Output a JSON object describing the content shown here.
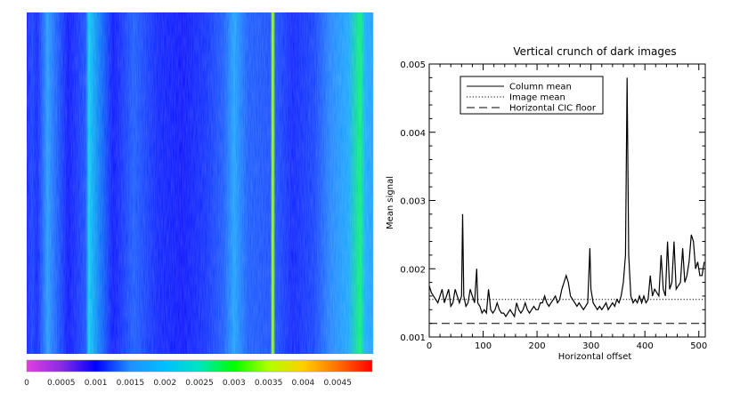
{
  "chart_data": [
    {
      "type": "heatmap",
      "colorbar": {
        "tick_labels": [
          "0",
          "0.0005",
          "0.001",
          "0.0015",
          "0.002",
          "0.0025",
          "0.003",
          "0.0035",
          "0.004",
          "0.0045"
        ],
        "ticks": [
          0,
          0.0005,
          0.001,
          0.0015,
          0.002,
          0.0025,
          0.003,
          0.0035,
          0.004,
          0.0045
        ],
        "range": [
          0,
          0.005
        ],
        "colors": [
          "#e040e0",
          "#8a2be2",
          "#0000ff",
          "#1e90ff",
          "#00bfff",
          "#00e5c0",
          "#00ff00",
          "#b0ff00",
          "#ffd000",
          "#ff7000",
          "#ff0000"
        ]
      },
      "column_profile": [
        {
          "x": 0,
          "y": 0.0011
        },
        {
          "x": 0.015,
          "y": 0.0012
        },
        {
          "x": 0.03,
          "y": 0.0011
        },
        {
          "x": 0.06,
          "y": 0.00155
        },
        {
          "x": 0.12,
          "y": 0.00105
        },
        {
          "x": 0.17,
          "y": 0.00125
        },
        {
          "x": 0.18,
          "y": 0.0021
        },
        {
          "x": 0.25,
          "y": 0.00105
        },
        {
          "x": 0.31,
          "y": 0.0013
        },
        {
          "x": 0.38,
          "y": 0.0011
        },
        {
          "x": 0.45,
          "y": 0.00105
        },
        {
          "x": 0.52,
          "y": 0.00115
        },
        {
          "x": 0.57,
          "y": 0.0013
        },
        {
          "x": 0.6,
          "y": 0.00165
        },
        {
          "x": 0.64,
          "y": 0.0013
        },
        {
          "x": 0.705,
          "y": 0.00125
        },
        {
          "x": 0.712,
          "y": 0.0034
        },
        {
          "x": 0.72,
          "y": 0.00125
        },
        {
          "x": 0.77,
          "y": 0.0011
        },
        {
          "x": 0.83,
          "y": 0.0012
        },
        {
          "x": 0.88,
          "y": 0.00145
        },
        {
          "x": 0.93,
          "y": 0.0017
        },
        {
          "x": 0.965,
          "y": 0.0027
        },
        {
          "x": 0.98,
          "y": 0.0018
        },
        {
          "x": 1.0,
          "y": 0.0016
        }
      ]
    },
    {
      "type": "line",
      "title": "Vertical crunch of dark images",
      "xlabel": "Horizontal offset",
      "ylabel": "Mean signal",
      "xlim": [
        0,
        512
      ],
      "ylim": [
        0.001,
        0.005
      ],
      "x_ticks": [
        0,
        100,
        200,
        300,
        400,
        500
      ],
      "x_tick_labels": [
        "0",
        "100",
        "200",
        "300",
        "400",
        "500"
      ],
      "y_ticks": [
        0.001,
        0.002,
        0.003,
        0.004,
        0.005
      ],
      "y_tick_labels": [
        "0.001",
        "0.002",
        "0.003",
        "0.004",
        "0.005"
      ],
      "legend": {
        "position": "top-left",
        "entries": [
          {
            "label": "Column mean",
            "style": "solid"
          },
          {
            "label": "Image mean",
            "style": "dotted"
          },
          {
            "label": "Horizontal CIC floor",
            "style": "dashed"
          }
        ]
      },
      "series": [
        {
          "name": "Column mean",
          "style": "solid",
          "points": [
            [
              0,
              0.00175
            ],
            [
              4,
              0.00165
            ],
            [
              8,
              0.0016
            ],
            [
              12,
              0.00155
            ],
            [
              16,
              0.0015
            ],
            [
              20,
              0.0016
            ],
            [
              24,
              0.0017
            ],
            [
              28,
              0.0015
            ],
            [
              32,
              0.0016
            ],
            [
              36,
              0.0017
            ],
            [
              40,
              0.00145
            ],
            [
              44,
              0.0015
            ],
            [
              48,
              0.0017
            ],
            [
              52,
              0.0016
            ],
            [
              56,
              0.0015
            ],
            [
              60,
              0.0016
            ],
            [
              62,
              0.0028
            ],
            [
              64,
              0.0016
            ],
            [
              68,
              0.00145
            ],
            [
              72,
              0.0015
            ],
            [
              76,
              0.0017
            ],
            [
              80,
              0.0016
            ],
            [
              84,
              0.0015
            ],
            [
              88,
              0.002
            ],
            [
              90,
              0.0015
            ],
            [
              94,
              0.00145
            ],
            [
              98,
              0.00135
            ],
            [
              102,
              0.0014
            ],
            [
              106,
              0.00135
            ],
            [
              110,
              0.0017
            ],
            [
              114,
              0.0014
            ],
            [
              118,
              0.00135
            ],
            [
              122,
              0.0014
            ],
            [
              126,
              0.0015
            ],
            [
              130,
              0.0014
            ],
            [
              134,
              0.00135
            ],
            [
              138,
              0.00135
            ],
            [
              142,
              0.0013
            ],
            [
              146,
              0.00135
            ],
            [
              150,
              0.0014
            ],
            [
              154,
              0.00135
            ],
            [
              158,
              0.0013
            ],
            [
              162,
              0.0015
            ],
            [
              166,
              0.0014
            ],
            [
              170,
              0.00135
            ],
            [
              174,
              0.0014
            ],
            [
              178,
              0.0015
            ],
            [
              182,
              0.0014
            ],
            [
              186,
              0.00135
            ],
            [
              190,
              0.0014
            ],
            [
              194,
              0.00145
            ],
            [
              198,
              0.0014
            ],
            [
              202,
              0.0014
            ],
            [
              206,
              0.0015
            ],
            [
              210,
              0.0015
            ],
            [
              214,
              0.0016
            ],
            [
              218,
              0.0015
            ],
            [
              222,
              0.00145
            ],
            [
              226,
              0.0015
            ],
            [
              230,
              0.00155
            ],
            [
              234,
              0.0016
            ],
            [
              238,
              0.0015
            ],
            [
              242,
              0.00155
            ],
            [
              246,
              0.0017
            ],
            [
              250,
              0.0018
            ],
            [
              254,
              0.0019
            ],
            [
              258,
              0.0018
            ],
            [
              262,
              0.0016
            ],
            [
              266,
              0.00155
            ],
            [
              270,
              0.0015
            ],
            [
              274,
              0.00145
            ],
            [
              278,
              0.0015
            ],
            [
              282,
              0.00145
            ],
            [
              286,
              0.0014
            ],
            [
              290,
              0.00145
            ],
            [
              294,
              0.0015
            ],
            [
              298,
              0.0023
            ],
            [
              300,
              0.0017
            ],
            [
              304,
              0.0015
            ],
            [
              308,
              0.00145
            ],
            [
              312,
              0.0014
            ],
            [
              316,
              0.00145
            ],
            [
              320,
              0.0014
            ],
            [
              324,
              0.00145
            ],
            [
              328,
              0.0015
            ],
            [
              332,
              0.0014
            ],
            [
              336,
              0.00145
            ],
            [
              340,
              0.0015
            ],
            [
              344,
              0.00145
            ],
            [
              348,
              0.00155
            ],
            [
              352,
              0.0015
            ],
            [
              356,
              0.0016
            ],
            [
              360,
              0.0018
            ],
            [
              364,
              0.0022
            ],
            [
              367,
              0.0048
            ],
            [
              370,
              0.0022
            ],
            [
              374,
              0.0016
            ],
            [
              378,
              0.0015
            ],
            [
              382,
              0.00155
            ],
            [
              386,
              0.0015
            ],
            [
              390,
              0.0016
            ],
            [
              394,
              0.0015
            ],
            [
              398,
              0.0016
            ],
            [
              402,
              0.0015
            ],
            [
              406,
              0.00155
            ],
            [
              410,
              0.0019
            ],
            [
              414,
              0.0016
            ],
            [
              418,
              0.0017
            ],
            [
              422,
              0.00165
            ],
            [
              426,
              0.0016
            ],
            [
              430,
              0.0022
            ],
            [
              434,
              0.0017
            ],
            [
              438,
              0.0016
            ],
            [
              442,
              0.0024
            ],
            [
              446,
              0.0017
            ],
            [
              450,
              0.0018
            ],
            [
              454,
              0.0024
            ],
            [
              458,
              0.0017
            ],
            [
              462,
              0.00175
            ],
            [
              466,
              0.0018
            ],
            [
              470,
              0.0023
            ],
            [
              474,
              0.0018
            ],
            [
              478,
              0.0019
            ],
            [
              482,
              0.0021
            ],
            [
              486,
              0.0025
            ],
            [
              490,
              0.0024
            ],
            [
              494,
              0.002
            ],
            [
              498,
              0.0021
            ],
            [
              502,
              0.0019
            ],
            [
              506,
              0.0019
            ],
            [
              510,
              0.0021
            ]
          ]
        },
        {
          "name": "Image mean",
          "style": "dotted",
          "points": [
            [
              0,
              0.00155
            ],
            [
              512,
              0.00155
            ]
          ]
        },
        {
          "name": "Horizontal CIC floor",
          "style": "dashed",
          "points": [
            [
              0,
              0.0012
            ],
            [
              512,
              0.0012
            ]
          ]
        }
      ]
    }
  ]
}
